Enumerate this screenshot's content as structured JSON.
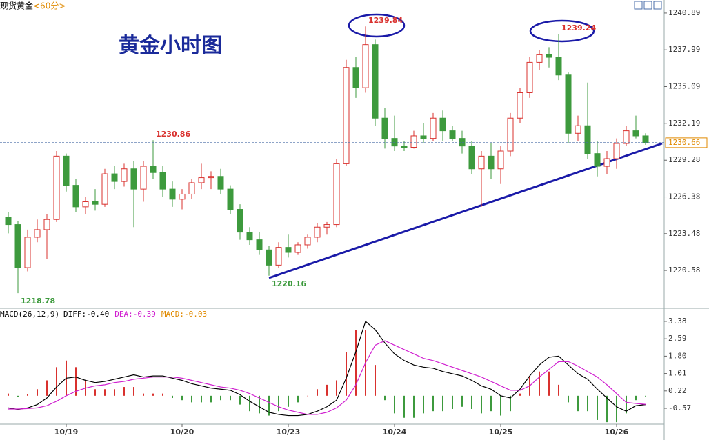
{
  "chart_data": [
    {
      "type": "candlestick",
      "header": "现货黄金",
      "period": "<60分>",
      "title": "黄金小时图",
      "categories": [
        null,
        null,
        null,
        null,
        null,
        null,
        "10/19",
        null,
        null,
        null,
        null,
        null,
        null,
        null,
        null,
        null,
        null,
        null,
        "10/20",
        null,
        null,
        null,
        null,
        null,
        null,
        null,
        null,
        null,
        null,
        "10/23",
        null,
        null,
        null,
        null,
        null,
        null,
        null,
        null,
        null,
        null,
        "10/24",
        null,
        null,
        null,
        null,
        null,
        null,
        null,
        null,
        null,
        null,
        "10/25",
        null,
        null,
        null,
        null,
        null,
        null,
        null,
        null,
        null,
        null,
        null,
        "10/26",
        null,
        null,
        null
      ],
      "open": [
        1224.8,
        1224.2,
        1220.8,
        1223.2,
        1223.8,
        1224.6,
        1229.6,
        1227.3,
        1225.6,
        1226.0,
        1225.8,
        1228.2,
        1227.6,
        1228.6,
        1227.0,
        1228.8,
        1228.3,
        1227.0,
        1226.2,
        1226.6,
        1227.5,
        1227.9,
        1228.0,
        1227.0,
        1225.4,
        1223.6,
        1223.0,
        1222.2,
        1221.0,
        1222.4,
        1222.0,
        1222.6,
        1223.2,
        1224.0,
        1224.2,
        1229.0,
        1236.6,
        1235.0,
        1238.4,
        1232.6,
        1231.0,
        1230.4,
        1230.3,
        1231.2,
        1231.0,
        1232.6,
        1231.6,
        1231.0,
        1230.4,
        1228.6,
        1229.6,
        1228.6,
        1230.0,
        1232.6,
        1234.6,
        1237.0,
        1237.6,
        1237.4,
        1236.0,
        1231.4,
        1232.0,
        1229.8,
        1228.8,
        1229.4,
        1230.6,
        1231.6,
        1231.2
      ],
      "high": [
        1225.2,
        1224.5,
        1223.8,
        1224.6,
        1225.0,
        1230.0,
        1229.8,
        1227.8,
        1226.4,
        1227.0,
        1228.6,
        1228.8,
        1229.0,
        1229.2,
        1229.2,
        1230.86,
        1228.8,
        1227.6,
        1227.0,
        1227.8,
        1229.0,
        1228.4,
        1228.6,
        1227.3,
        1225.8,
        1224.0,
        1223.6,
        1222.5,
        1222.8,
        1223.4,
        1222.8,
        1223.4,
        1224.3,
        1224.4,
        1229.4,
        1237.2,
        1237.4,
        1239.84,
        1238.8,
        1233.4,
        1232.8,
        1230.8,
        1231.6,
        1232.2,
        1233.0,
        1233.2,
        1232.0,
        1231.6,
        1230.8,
        1230.0,
        1230.6,
        1230.4,
        1233.0,
        1235.0,
        1237.4,
        1238.0,
        1238.2,
        1239.24,
        1236.2,
        1232.8,
        1235.4,
        1230.8,
        1230.0,
        1231.0,
        1232.0,
        1232.8,
        1231.4
      ],
      "low": [
        1223.5,
        1218.78,
        1220.5,
        1222.8,
        1221.5,
        1224.4,
        1226.8,
        1225.2,
        1225.0,
        1225.3,
        1225.6,
        1227.0,
        1227.2,
        1224.0,
        1226.0,
        1227.8,
        1226.4,
        1225.6,
        1225.4,
        1226.2,
        1227.0,
        1227.0,
        1226.6,
        1225.0,
        1223.0,
        1222.6,
        1221.8,
        1220.16,
        1220.8,
        1221.6,
        1221.8,
        1222.3,
        1222.8,
        1223.4,
        1224.0,
        1228.8,
        1234.2,
        1234.6,
        1232.0,
        1230.2,
        1230.0,
        1230.0,
        1230.2,
        1230.6,
        1230.8,
        1230.8,
        1230.8,
        1229.8,
        1228.2,
        1225.6,
        1227.8,
        1227.4,
        1229.6,
        1232.2,
        1234.2,
        1236.4,
        1236.6,
        1235.6,
        1230.6,
        1230.8,
        1229.4,
        1228.0,
        1228.2,
        1228.6,
        1230.4,
        1231.0,
        1230.5
      ],
      "close": [
        1224.2,
        1220.8,
        1223.2,
        1223.8,
        1224.6,
        1229.6,
        1227.3,
        1225.6,
        1226.0,
        1225.8,
        1228.2,
        1227.6,
        1228.6,
        1227.0,
        1228.8,
        1228.3,
        1227.0,
        1226.2,
        1226.6,
        1227.5,
        1227.9,
        1228.0,
        1227.0,
        1225.4,
        1223.6,
        1223.0,
        1222.2,
        1221.0,
        1222.4,
        1222.0,
        1222.6,
        1223.2,
        1224.0,
        1224.2,
        1229.0,
        1236.6,
        1235.0,
        1238.4,
        1232.6,
        1231.0,
        1230.4,
        1230.3,
        1231.2,
        1231.0,
        1232.6,
        1231.6,
        1231.0,
        1230.4,
        1228.6,
        1229.6,
        1228.6,
        1230.0,
        1232.6,
        1234.6,
        1237.0,
        1237.6,
        1237.4,
        1236.0,
        1231.4,
        1232.0,
        1229.8,
        1228.8,
        1229.4,
        1230.6,
        1231.6,
        1231.2,
        1230.66
      ],
      "up_color": "#d9312e",
      "down_color": "#3d9a3d",
      "label_color": "#e08a00",
      "ylim": [
        1217.7,
        1241.92
      ],
      "yticks": [
        1220.58,
        1223.48,
        1226.38,
        1229.28,
        1232.19,
        1235.09,
        1237.99,
        1240.89
      ]
    },
    {
      "type": "macd",
      "title": "MACD(26,12,9)",
      "series": [
        {
          "name": "DIFF:-0.40",
          "color": "#000000",
          "values": [
            -0.55,
            -0.62,
            -0.55,
            -0.4,
            -0.1,
            0.4,
            0.8,
            0.85,
            0.7,
            0.6,
            0.65,
            0.75,
            0.85,
            0.95,
            0.85,
            0.9,
            0.9,
            0.8,
            0.7,
            0.55,
            0.45,
            0.35,
            0.3,
            0.25,
            0.05,
            -0.25,
            -0.5,
            -0.75,
            -0.85,
            -0.9,
            -0.9,
            -0.85,
            -0.7,
            -0.5,
            -0.2,
            0.8,
            2.0,
            3.38,
            3.0,
            2.4,
            1.9,
            1.6,
            1.4,
            1.3,
            1.25,
            1.1,
            1.0,
            0.9,
            0.7,
            0.45,
            0.3,
            0.0,
            -0.1,
            0.3,
            0.9,
            1.4,
            1.75,
            1.8,
            1.4,
            1.0,
            0.75,
            0.3,
            -0.1,
            -0.5,
            -0.7,
            -0.45,
            -0.4
          ]
        },
        {
          "name": "DEA:-0.39",
          "color": "#d020d0",
          "values": [
            -0.6,
            -0.6,
            -0.58,
            -0.55,
            -0.45,
            -0.25,
            0.0,
            0.2,
            0.35,
            0.45,
            0.5,
            0.6,
            0.65,
            0.75,
            0.8,
            0.85,
            0.85,
            0.85,
            0.8,
            0.7,
            0.6,
            0.5,
            0.4,
            0.35,
            0.25,
            0.1,
            -0.1,
            -0.3,
            -0.5,
            -0.65,
            -0.75,
            -0.85,
            -0.85,
            -0.75,
            -0.55,
            -0.2,
            0.5,
            1.5,
            2.3,
            2.5,
            2.3,
            2.1,
            1.9,
            1.7,
            1.6,
            1.45,
            1.3,
            1.15,
            1.0,
            0.85,
            0.65,
            0.45,
            0.25,
            0.25,
            0.45,
            0.85,
            1.2,
            1.55,
            1.55,
            1.35,
            1.1,
            0.85,
            0.5,
            0.1,
            -0.3,
            -0.35,
            -0.39
          ]
        },
        {
          "name": "MACD:-0.03",
          "color": "#e08a00",
          "bar_colors": [
            "#d9312e",
            "#3d9a3d"
          ],
          "values": [
            0.1,
            -0.04,
            0.06,
            0.3,
            0.7,
            1.3,
            1.6,
            1.3,
            0.7,
            0.3,
            0.3,
            0.3,
            0.4,
            0.4,
            0.1,
            0.1,
            0.1,
            -0.1,
            -0.2,
            -0.3,
            -0.3,
            -0.3,
            -0.2,
            -0.2,
            -0.4,
            -0.7,
            -0.8,
            -0.9,
            -0.7,
            -0.5,
            -0.3,
            0.0,
            0.3,
            0.5,
            0.7,
            2.0,
            3.0,
            3.0,
            1.4,
            -0.2,
            -0.8,
            -1.0,
            -1.0,
            -0.8,
            -0.7,
            -0.7,
            -0.6,
            -0.5,
            -0.6,
            -0.8,
            -0.7,
            -0.9,
            -0.7,
            0.1,
            0.9,
            1.1,
            1.1,
            0.5,
            -0.3,
            -0.7,
            -0.7,
            -1.1,
            -1.2,
            -1.2,
            -0.8,
            -0.2,
            -0.03
          ]
        }
      ],
      "ylim": [
        -1.29,
        3.88
      ],
      "yticks": [
        3.38,
        2.59,
        {
          "value": 1.8,
          "label": "1.80"
        },
        1.01,
        0.22,
        -0.57
      ]
    }
  ]
}
